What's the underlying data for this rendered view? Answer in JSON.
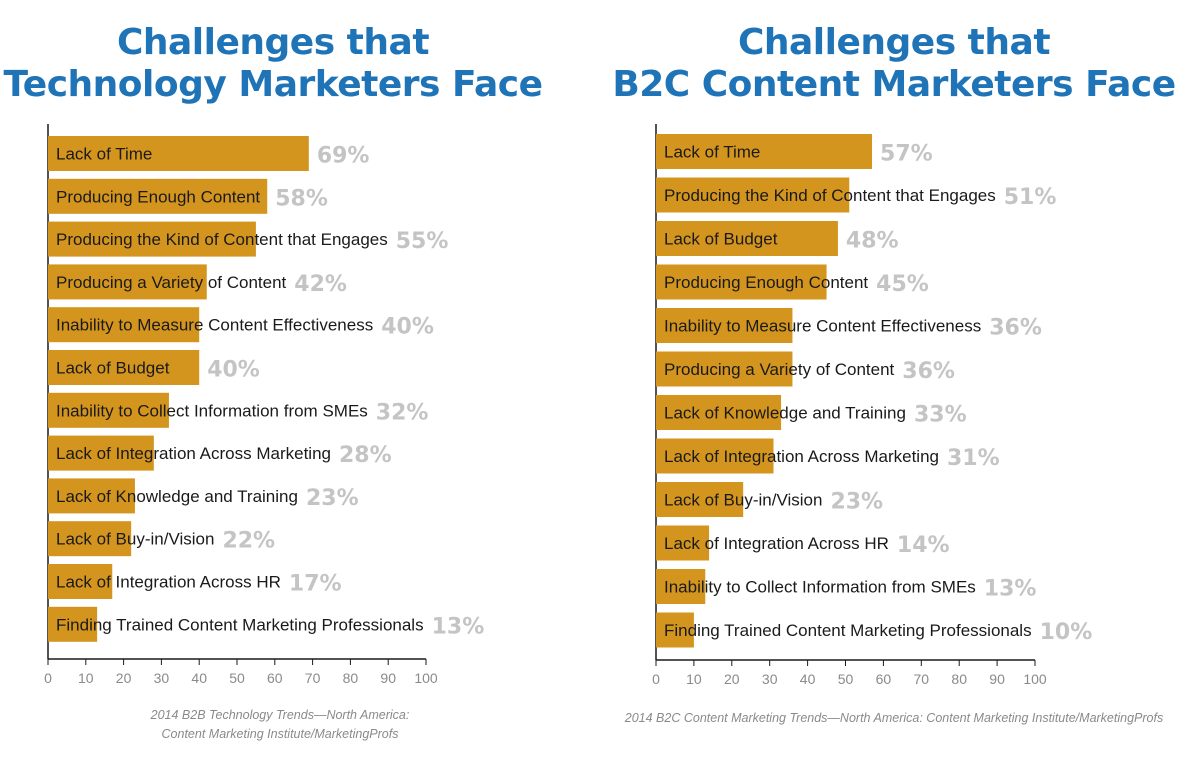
{
  "left": {
    "title_line1": "Challenges that",
    "title_line2": "Technology Marketers Face",
    "source_line1": "2014 B2B Technology Trends—North America:",
    "source_line2": "Content Marketing Institute/MarketingProfs"
  },
  "right": {
    "title_line1": "Challenges that",
    "title_line2": "B2C Content Marketers Face",
    "source_line1": "2014 B2C Content Marketing Trends—North America: Content Marketing Institute/MarketingProfs"
  },
  "colors": {
    "title": "#1f73b7",
    "bar": "#d4951f",
    "value_label": "#c4c4c4",
    "tick_label": "#8a8a8a"
  },
  "chart_data": [
    {
      "type": "bar",
      "orientation": "horizontal",
      "title": "Challenges that Technology Marketers Face",
      "categories": [
        "Lack of Time",
        "Producing Enough Content",
        "Producing the Kind of Content that Engages",
        "Producing a Variety of Content",
        "Inability to Measure Content Effectiveness",
        "Lack of Budget",
        "Inability to Collect Information from SMEs",
        "Lack of Integration Across Marketing",
        "Lack of Knowledge and Training",
        "Lack of Buy-in/Vision",
        "Lack of Integration Across HR",
        "Finding Trained Content Marketing Professionals"
      ],
      "values": [
        69,
        58,
        55,
        42,
        40,
        40,
        32,
        28,
        23,
        22,
        17,
        13
      ],
      "value_labels": [
        "69%",
        "58%",
        "55%",
        "42%",
        "40%",
        "40%",
        "32%",
        "28%",
        "23%",
        "22%",
        "17%",
        "13%"
      ],
      "xlim": [
        0,
        100
      ],
      "xticks": [
        0,
        10,
        20,
        30,
        40,
        50,
        60,
        70,
        80,
        90,
        100
      ],
      "xlabel": "",
      "ylabel": "",
      "grid": false,
      "legend": "none"
    },
    {
      "type": "bar",
      "orientation": "horizontal",
      "title": "Challenges that B2C Content Marketers Face",
      "categories": [
        "Lack of Time",
        "Producing the Kind of Content that Engages",
        "Lack of Budget",
        "Producing Enough Content",
        "Inability to Measure Content Effectiveness",
        "Producing a Variety of Content",
        "Lack of Knowledge and Training",
        "Lack of Integration Across Marketing",
        "Lack of Buy-in/Vision",
        "Lack of Integration Across HR",
        "Inability to Collect Information from SMEs",
        "Finding Trained Content Marketing Professionals"
      ],
      "values": [
        57,
        51,
        48,
        45,
        36,
        36,
        33,
        31,
        23,
        14,
        13,
        10
      ],
      "value_labels": [
        "57%",
        "51%",
        "48%",
        "45%",
        "36%",
        "36%",
        "33%",
        "31%",
        "23%",
        "14%",
        "13%",
        "10%"
      ],
      "xlim": [
        0,
        100
      ],
      "xticks": [
        0,
        10,
        20,
        30,
        40,
        50,
        60,
        70,
        80,
        90,
        100
      ],
      "xlabel": "",
      "ylabel": "",
      "grid": false,
      "legend": "none"
    }
  ]
}
